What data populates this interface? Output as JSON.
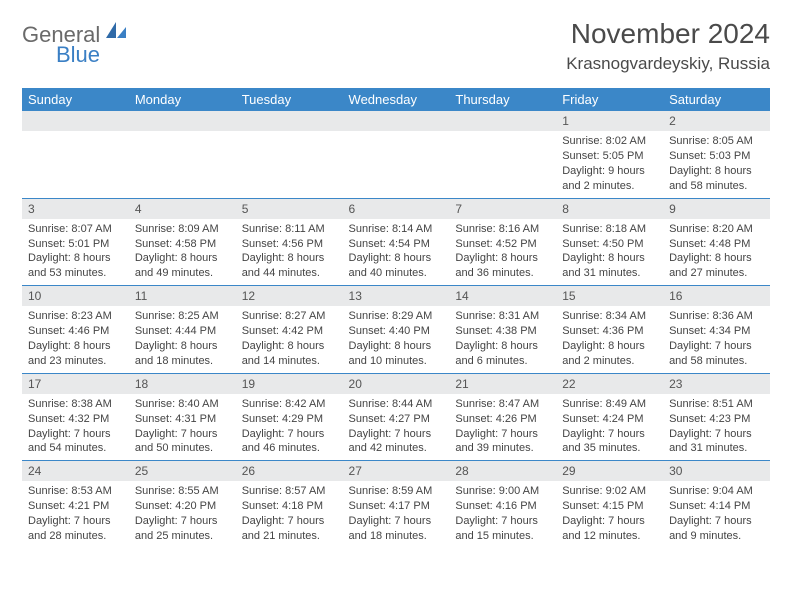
{
  "logo": {
    "part1": "General",
    "part2": "Blue"
  },
  "title": "November 2024",
  "location": "Krasnogvardeyskiy, Russia",
  "colors": {
    "header_bg": "#3b87c8",
    "header_text": "#ffffff",
    "daynum_bg": "#e8e9ea",
    "border": "#3b87c8",
    "logo_gray": "#6a6a6a",
    "logo_blue": "#3a7fc4"
  },
  "weekdays": [
    "Sunday",
    "Monday",
    "Tuesday",
    "Wednesday",
    "Thursday",
    "Friday",
    "Saturday"
  ],
  "grid": [
    [
      null,
      null,
      null,
      null,
      null,
      {
        "n": "1",
        "sr": "8:02 AM",
        "ss": "5:05 PM",
        "dl": "9 hours and 2 minutes."
      },
      {
        "n": "2",
        "sr": "8:05 AM",
        "ss": "5:03 PM",
        "dl": "8 hours and 58 minutes."
      }
    ],
    [
      {
        "n": "3",
        "sr": "8:07 AM",
        "ss": "5:01 PM",
        "dl": "8 hours and 53 minutes."
      },
      {
        "n": "4",
        "sr": "8:09 AM",
        "ss": "4:58 PM",
        "dl": "8 hours and 49 minutes."
      },
      {
        "n": "5",
        "sr": "8:11 AM",
        "ss": "4:56 PM",
        "dl": "8 hours and 44 minutes."
      },
      {
        "n": "6",
        "sr": "8:14 AM",
        "ss": "4:54 PM",
        "dl": "8 hours and 40 minutes."
      },
      {
        "n": "7",
        "sr": "8:16 AM",
        "ss": "4:52 PM",
        "dl": "8 hours and 36 minutes."
      },
      {
        "n": "8",
        "sr": "8:18 AM",
        "ss": "4:50 PM",
        "dl": "8 hours and 31 minutes."
      },
      {
        "n": "9",
        "sr": "8:20 AM",
        "ss": "4:48 PM",
        "dl": "8 hours and 27 minutes."
      }
    ],
    [
      {
        "n": "10",
        "sr": "8:23 AM",
        "ss": "4:46 PM",
        "dl": "8 hours and 23 minutes."
      },
      {
        "n": "11",
        "sr": "8:25 AM",
        "ss": "4:44 PM",
        "dl": "8 hours and 18 minutes."
      },
      {
        "n": "12",
        "sr": "8:27 AM",
        "ss": "4:42 PM",
        "dl": "8 hours and 14 minutes."
      },
      {
        "n": "13",
        "sr": "8:29 AM",
        "ss": "4:40 PM",
        "dl": "8 hours and 10 minutes."
      },
      {
        "n": "14",
        "sr": "8:31 AM",
        "ss": "4:38 PM",
        "dl": "8 hours and 6 minutes."
      },
      {
        "n": "15",
        "sr": "8:34 AM",
        "ss": "4:36 PM",
        "dl": "8 hours and 2 minutes."
      },
      {
        "n": "16",
        "sr": "8:36 AM",
        "ss": "4:34 PM",
        "dl": "7 hours and 58 minutes."
      }
    ],
    [
      {
        "n": "17",
        "sr": "8:38 AM",
        "ss": "4:32 PM",
        "dl": "7 hours and 54 minutes."
      },
      {
        "n": "18",
        "sr": "8:40 AM",
        "ss": "4:31 PM",
        "dl": "7 hours and 50 minutes."
      },
      {
        "n": "19",
        "sr": "8:42 AM",
        "ss": "4:29 PM",
        "dl": "7 hours and 46 minutes."
      },
      {
        "n": "20",
        "sr": "8:44 AM",
        "ss": "4:27 PM",
        "dl": "7 hours and 42 minutes."
      },
      {
        "n": "21",
        "sr": "8:47 AM",
        "ss": "4:26 PM",
        "dl": "7 hours and 39 minutes."
      },
      {
        "n": "22",
        "sr": "8:49 AM",
        "ss": "4:24 PM",
        "dl": "7 hours and 35 minutes."
      },
      {
        "n": "23",
        "sr": "8:51 AM",
        "ss": "4:23 PM",
        "dl": "7 hours and 31 minutes."
      }
    ],
    [
      {
        "n": "24",
        "sr": "8:53 AM",
        "ss": "4:21 PM",
        "dl": "7 hours and 28 minutes."
      },
      {
        "n": "25",
        "sr": "8:55 AM",
        "ss": "4:20 PM",
        "dl": "7 hours and 25 minutes."
      },
      {
        "n": "26",
        "sr": "8:57 AM",
        "ss": "4:18 PM",
        "dl": "7 hours and 21 minutes."
      },
      {
        "n": "27",
        "sr": "8:59 AM",
        "ss": "4:17 PM",
        "dl": "7 hours and 18 minutes."
      },
      {
        "n": "28",
        "sr": "9:00 AM",
        "ss": "4:16 PM",
        "dl": "7 hours and 15 minutes."
      },
      {
        "n": "29",
        "sr": "9:02 AM",
        "ss": "4:15 PM",
        "dl": "7 hours and 12 minutes."
      },
      {
        "n": "30",
        "sr": "9:04 AM",
        "ss": "4:14 PM",
        "dl": "7 hours and 9 minutes."
      }
    ]
  ],
  "labels": {
    "sunrise": "Sunrise:",
    "sunset": "Sunset:",
    "daylight": "Daylight:"
  }
}
